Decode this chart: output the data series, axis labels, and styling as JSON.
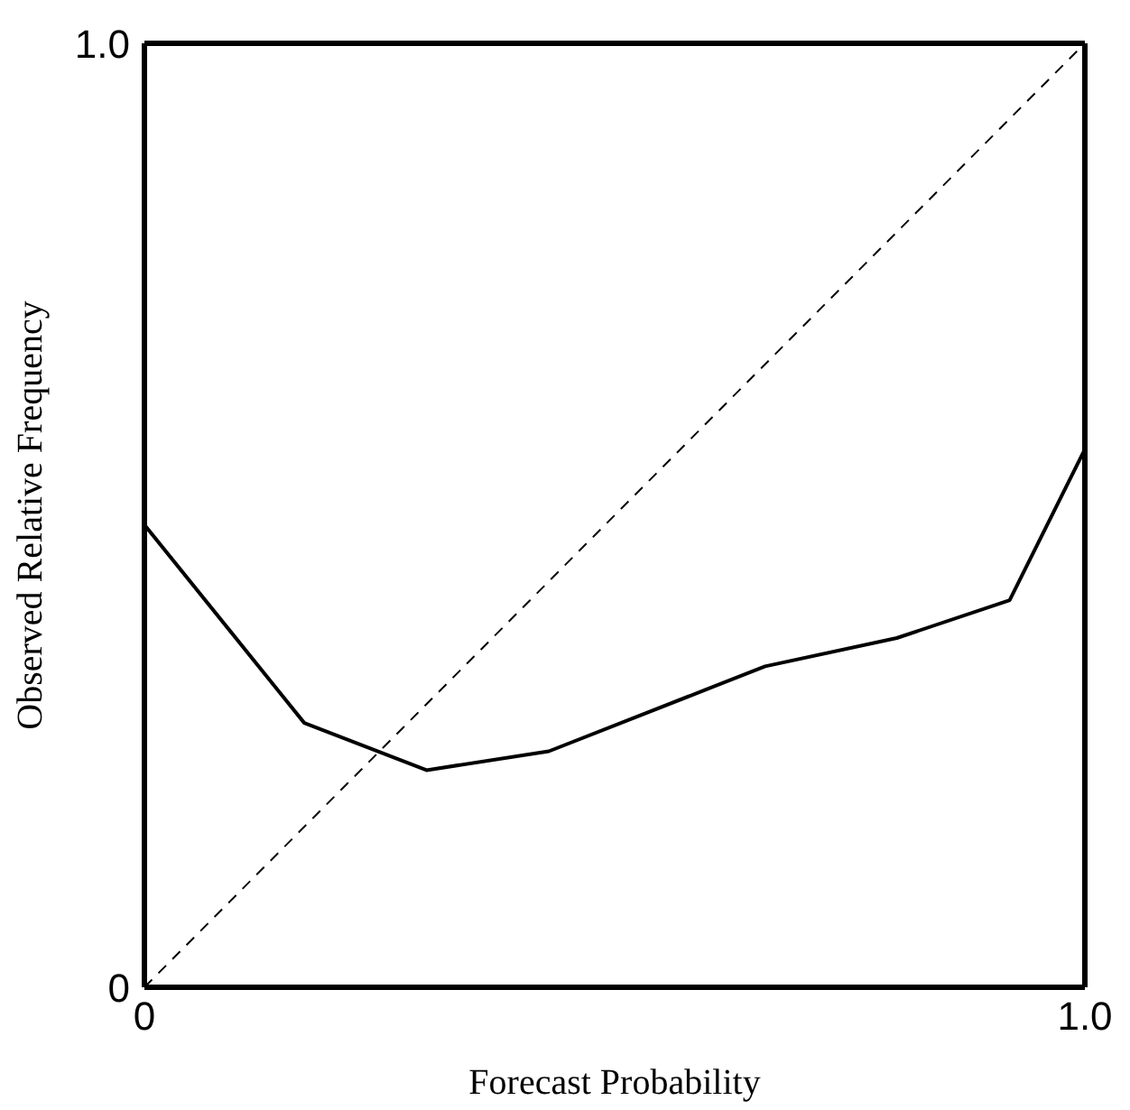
{
  "chart_data": {
    "type": "line",
    "xlabel": "Forecast Probability",
    "ylabel": "Observed Relative Frequency",
    "xlim": [
      0,
      1
    ],
    "ylim": [
      0,
      1
    ],
    "xticks": [
      0,
      {
        "value": 1,
        "label": "1.0"
      }
    ],
    "yticks": [
      0,
      {
        "value": 1,
        "label": "1.0"
      }
    ],
    "series": [
      {
        "color": "#000000",
        "line_style": "solid",
        "x": [
          0,
          0.17,
          0.3,
          0.43,
          0.66,
          0.8,
          0.92,
          1
        ],
        "values": [
          0.49,
          0.28,
          0.23,
          0.25,
          0.34,
          0.37,
          0.41,
          0.57
        ]
      },
      {
        "color": "#000000",
        "line_style": "dashed",
        "x": [
          0,
          1
        ],
        "values": [
          0,
          1
        ]
      }
    ],
    "marker": "none"
  }
}
